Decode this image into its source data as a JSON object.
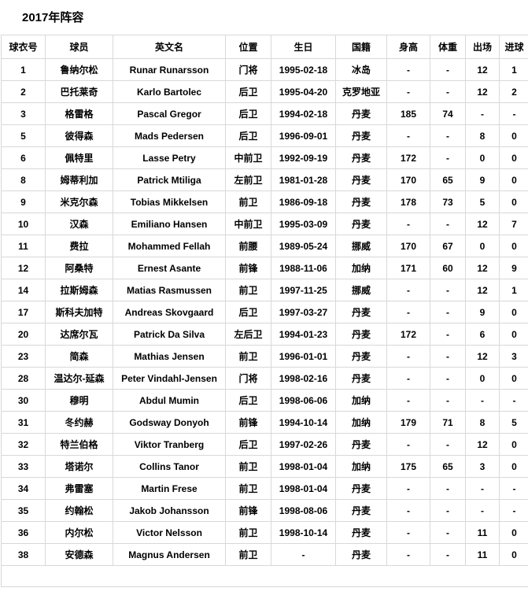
{
  "page": {
    "title": "2017年阵容"
  },
  "table": {
    "columns": [
      {
        "label": "球衣号"
      },
      {
        "label": "球员"
      },
      {
        "label": "英文名"
      },
      {
        "label": "位置"
      },
      {
        "label": "生日"
      },
      {
        "label": "国籍"
      },
      {
        "label": "身高"
      },
      {
        "label": "体重"
      },
      {
        "label": "出场"
      },
      {
        "label": "进球"
      }
    ],
    "rows": [
      [
        "1",
        "鲁纳尔松",
        "Runar Runarsson",
        "门将",
        "1995-02-18",
        "冰岛",
        "-",
        "-",
        "12",
        "1"
      ],
      [
        "2",
        "巴托莱奇",
        "Karlo Bartolec",
        "后卫",
        "1995-04-20",
        "克罗地亚",
        "-",
        "-",
        "12",
        "2"
      ],
      [
        "3",
        "格雷格",
        "Pascal Gregor",
        "后卫",
        "1994-02-18",
        "丹麦",
        "185",
        "74",
        "-",
        "-"
      ],
      [
        "5",
        "彼得森",
        "Mads Pedersen",
        "后卫",
        "1996-09-01",
        "丹麦",
        "-",
        "-",
        "8",
        "0"
      ],
      [
        "6",
        "佩特里",
        "Lasse Petry",
        "中前卫",
        "1992-09-19",
        "丹麦",
        "172",
        "-",
        "0",
        "0"
      ],
      [
        "8",
        "姆蒂利加",
        "Patrick Mtiliga",
        "左前卫",
        "1981-01-28",
        "丹麦",
        "170",
        "65",
        "9",
        "0"
      ],
      [
        "9",
        "米克尔森",
        "Tobias Mikkelsen",
        "前卫",
        "1986-09-18",
        "丹麦",
        "178",
        "73",
        "5",
        "0"
      ],
      [
        "10",
        "汉森",
        "Emiliano Hansen",
        "中前卫",
        "1995-03-09",
        "丹麦",
        "-",
        "-",
        "12",
        "7"
      ],
      [
        "11",
        "费拉",
        "Mohammed Fellah",
        "前腰",
        "1989-05-24",
        "挪威",
        "170",
        "67",
        "0",
        "0"
      ],
      [
        "12",
        "阿桑特",
        "Ernest Asante",
        "前锋",
        "1988-11-06",
        "加纳",
        "171",
        "60",
        "12",
        "9"
      ],
      [
        "14",
        "拉斯姆森",
        "Matias Rasmussen",
        "前卫",
        "1997-11-25",
        "挪威",
        "-",
        "-",
        "12",
        "1"
      ],
      [
        "17",
        "斯科夫加特",
        "Andreas Skovgaard",
        "后卫",
        "1997-03-27",
        "丹麦",
        "-",
        "-",
        "9",
        "0"
      ],
      [
        "20",
        "达席尔瓦",
        "Patrick Da Silva",
        "左后卫",
        "1994-01-23",
        "丹麦",
        "172",
        "-",
        "6",
        "0"
      ],
      [
        "23",
        "简森",
        "Mathias Jensen",
        "前卫",
        "1996-01-01",
        "丹麦",
        "-",
        "-",
        "12",
        "3"
      ],
      [
        "28",
        "温达尔-延森",
        "Peter Vindahl-Jensen",
        "门将",
        "1998-02-16",
        "丹麦",
        "-",
        "-",
        "0",
        "0"
      ],
      [
        "30",
        "穆明",
        "Abdul Mumin",
        "后卫",
        "1998-06-06",
        "加纳",
        "-",
        "-",
        "-",
        "-"
      ],
      [
        "31",
        "冬约赫",
        "Godsway Donyoh",
        "前锋",
        "1994-10-14",
        "加纳",
        "179",
        "71",
        "8",
        "5"
      ],
      [
        "32",
        "特兰伯格",
        "Viktor Tranberg",
        "后卫",
        "1997-02-26",
        "丹麦",
        "-",
        "-",
        "12",
        "0"
      ],
      [
        "33",
        "塔诺尔",
        "Collins Tanor",
        "前卫",
        "1998-01-04",
        "加纳",
        "175",
        "65",
        "3",
        "0"
      ],
      [
        "34",
        "弗雷塞",
        "Martin Frese",
        "前卫",
        "1998-01-04",
        "丹麦",
        "-",
        "-",
        "-",
        "-"
      ],
      [
        "35",
        "约翰松",
        "Jakob Johansson",
        "前锋",
        "1998-08-06",
        "丹麦",
        "-",
        "-",
        "-",
        "-"
      ],
      [
        "36",
        "内尔松",
        "Victor Nelsson",
        "前卫",
        "1998-10-14",
        "丹麦",
        "-",
        "-",
        "11",
        "0"
      ],
      [
        "38",
        "安德森",
        "Magnus Andersen",
        "前卫",
        "-",
        "丹麦",
        "-",
        "-",
        "11",
        "0"
      ]
    ],
    "footer_empty_row": true
  }
}
